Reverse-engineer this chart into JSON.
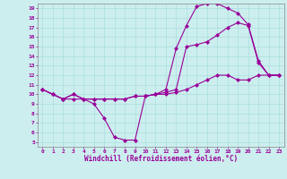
{
  "xlabel": "Windchill (Refroidissement éolien,°C)",
  "xlim": [
    -0.5,
    23.5
  ],
  "ylim": [
    4.5,
    19.5
  ],
  "xticks": [
    0,
    1,
    2,
    3,
    4,
    5,
    6,
    7,
    8,
    9,
    10,
    11,
    12,
    13,
    14,
    15,
    16,
    17,
    18,
    19,
    20,
    21,
    22,
    23
  ],
  "yticks": [
    5,
    6,
    7,
    8,
    9,
    10,
    11,
    12,
    13,
    14,
    15,
    16,
    17,
    18,
    19
  ],
  "bg_color": "#cceeee",
  "line_color": "#990099",
  "grid_color": "#aadddd",
  "line1_x": [
    0,
    1,
    2,
    3,
    4,
    5,
    6,
    7,
    8,
    9,
    10,
    11,
    12,
    13,
    14,
    15,
    16,
    17,
    18,
    19,
    20,
    21,
    22,
    23
  ],
  "line1_y": [
    10.5,
    10.0,
    9.5,
    9.5,
    9.5,
    9.0,
    7.5,
    5.5,
    5.2,
    5.2,
    9.8,
    10.0,
    10.0,
    10.2,
    10.5,
    11.0,
    11.5,
    12.0,
    12.0,
    11.5,
    11.5,
    12.0,
    12.0,
    12.0
  ],
  "line2_x": [
    0,
    1,
    2,
    3,
    4,
    5,
    6,
    7,
    8,
    9,
    10,
    11,
    12,
    13,
    14,
    15,
    16,
    17,
    18,
    19,
    20,
    21,
    22,
    23
  ],
  "line2_y": [
    10.5,
    10.0,
    9.5,
    10.0,
    9.5,
    9.5,
    9.5,
    9.5,
    9.5,
    9.8,
    9.8,
    10.0,
    10.2,
    10.5,
    15.0,
    15.2,
    15.5,
    16.2,
    17.0,
    17.5,
    17.2,
    13.3,
    12.0,
    12.0
  ],
  "line3_x": [
    0,
    1,
    2,
    3,
    4,
    5,
    6,
    7,
    8,
    9,
    10,
    11,
    12,
    13,
    14,
    15,
    16,
    17,
    18,
    19,
    20,
    21,
    22,
    23
  ],
  "line3_y": [
    10.5,
    10.0,
    9.5,
    10.0,
    9.5,
    9.5,
    9.5,
    9.5,
    9.5,
    9.8,
    9.8,
    10.0,
    10.5,
    14.8,
    17.2,
    19.2,
    19.5,
    19.5,
    19.0,
    18.5,
    17.3,
    13.5,
    12.0,
    12.0
  ],
  "marker": "D",
  "markersize": 2,
  "linewidth": 0.8,
  "tick_fontsize": 4.5,
  "xlabel_fontsize": 5.5
}
